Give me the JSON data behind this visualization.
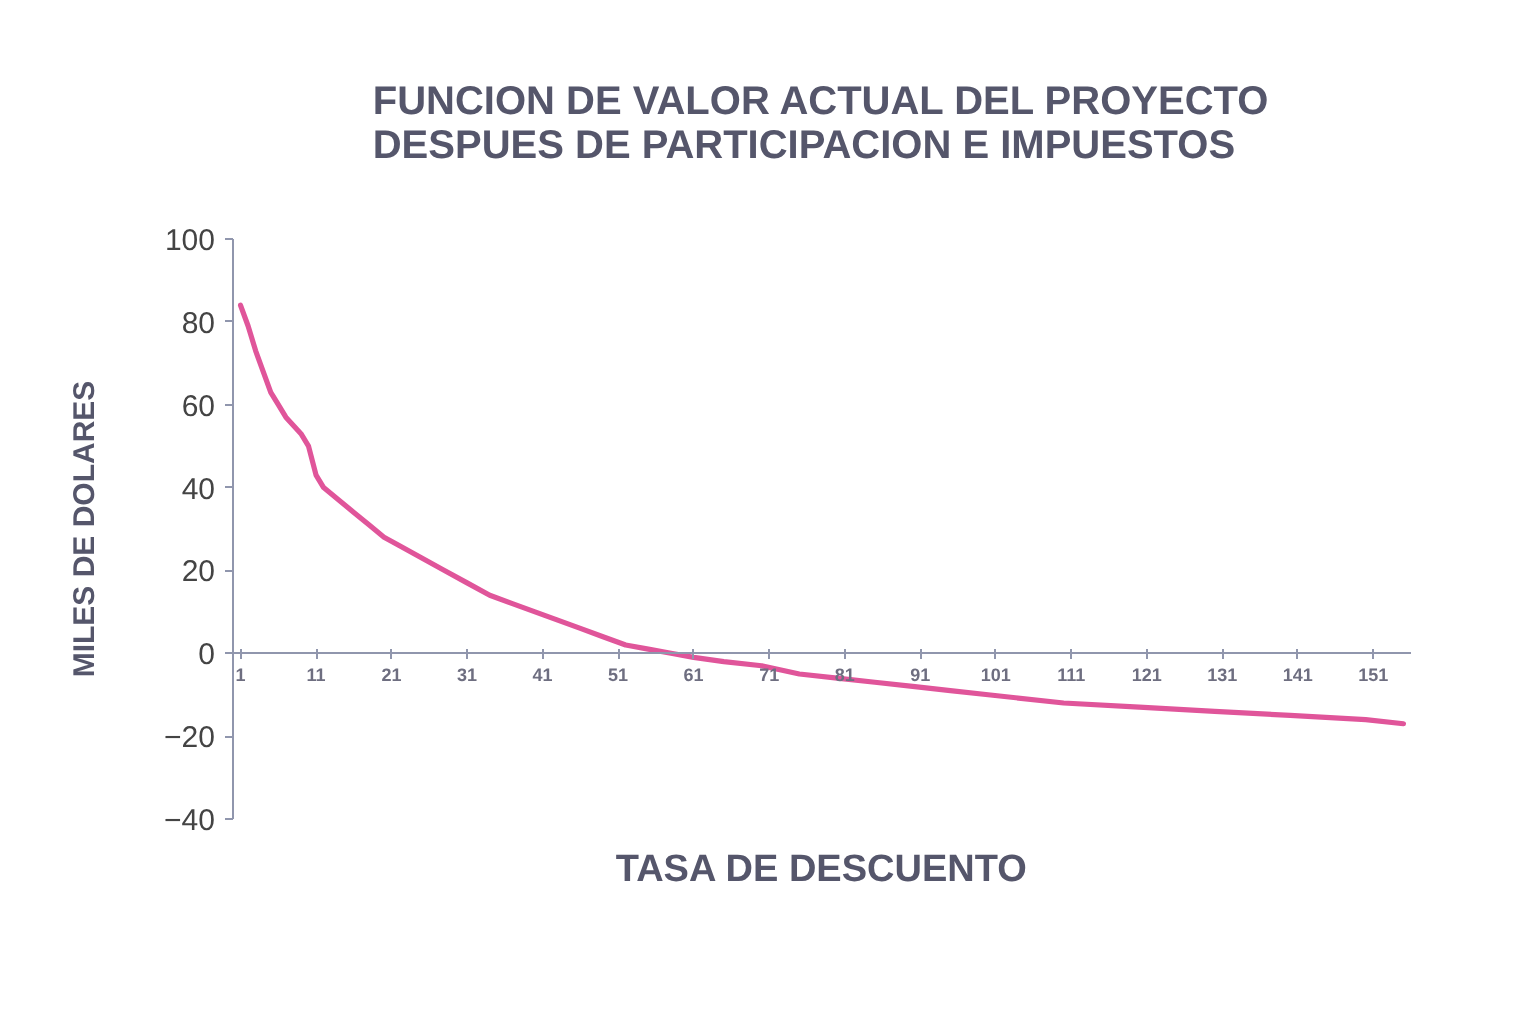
{
  "chart_data": {
    "type": "line",
    "title": "FUNCION DE VALOR ACTUAL DEL PROYECTO\nDESPUES DE PARTICIPACION E IMPUESTOS",
    "xlabel": "TASA DE DESCUENTO",
    "ylabel": "MILES DE DOLARES",
    "x": [
      1,
      2,
      3,
      4,
      5,
      6,
      7,
      8,
      9,
      10,
      11,
      12,
      14,
      16,
      18,
      20,
      22,
      25,
      28,
      31,
      34,
      37,
      40,
      43,
      46,
      49,
      52,
      55,
      58,
      61,
      65,
      70,
      75,
      80,
      85,
      90,
      95,
      100,
      110,
      120,
      130,
      140,
      150,
      155
    ],
    "series": [
      {
        "color": "#e0559a",
        "values": [
          84,
          79,
          73,
          68,
          63,
          60,
          57,
          55,
          53,
          50,
          43,
          40,
          37,
          34,
          31,
          28,
          26,
          23,
          20,
          17,
          14,
          12,
          10,
          8,
          6,
          4,
          2,
          1,
          0,
          -1,
          -2,
          -3,
          -5,
          -6,
          -7,
          -8,
          -9,
          -10,
          -12,
          -13,
          -14,
          -15,
          -16,
          -17
        ]
      }
    ],
    "xlim": [
      0,
      156
    ],
    "xticks": [
      1,
      11,
      21,
      31,
      41,
      51,
      61,
      71,
      81,
      91,
      101,
      111,
      121,
      131,
      141,
      151
    ],
    "ylim": [
      -40,
      100
    ],
    "yticks": [
      -40,
      -20,
      0,
      20,
      40,
      60,
      80,
      100
    ],
    "grid": false,
    "line_style": "solid"
  }
}
